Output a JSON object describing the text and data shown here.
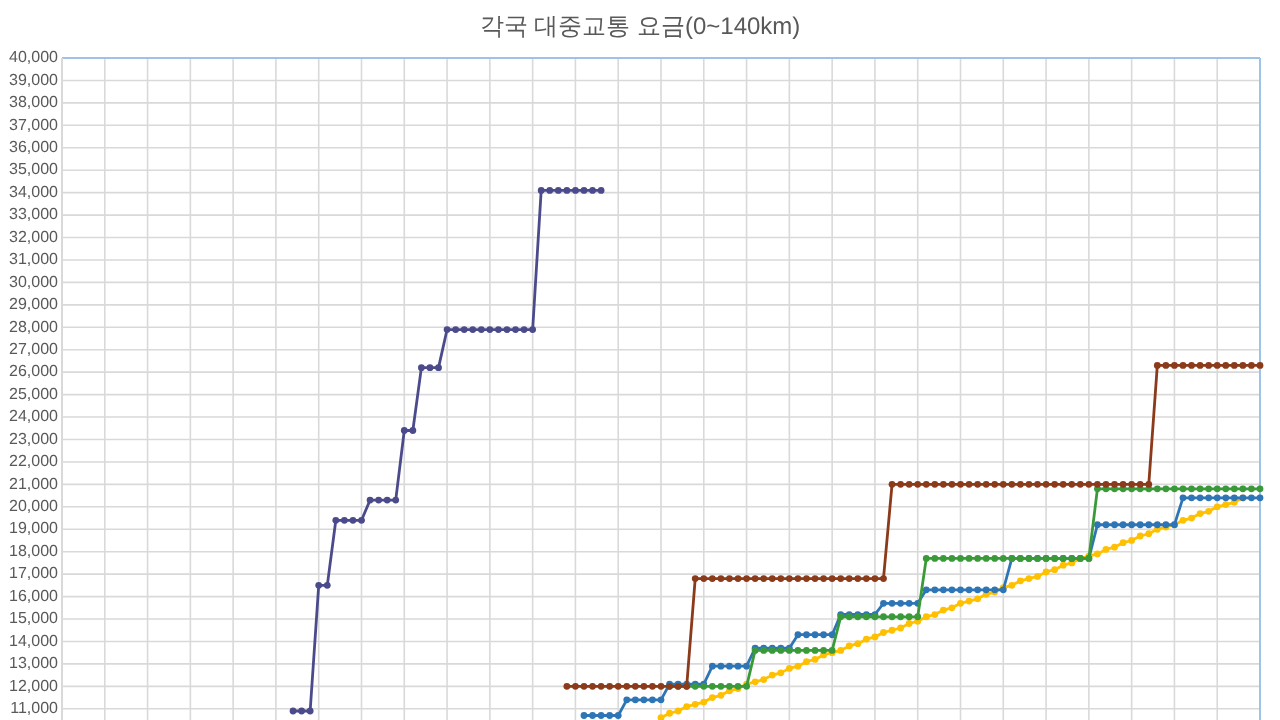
{
  "chart_data": {
    "type": "line",
    "title": "각국 대중교통 요금(0~140km)",
    "categories": [
      null,
      null,
      null,
      null,
      null,
      null,
      null,
      null,
      null,
      null,
      null,
      null,
      null,
      null,
      null,
      null,
      null,
      null,
      null,
      null,
      null,
      null,
      null,
      null,
      null,
      null,
      null,
      null,
      null,
      null,
      null,
      null,
      null,
      null,
      null,
      null,
      null,
      null,
      null,
      null,
      null,
      null,
      null,
      null,
      null,
      null,
      null,
      null,
      null,
      null,
      null,
      null,
      null,
      null,
      null,
      null,
      null,
      null,
      null,
      null,
      null,
      null,
      null,
      null,
      null,
      null,
      null,
      null,
      null,
      null,
      null,
      null,
      null,
      null,
      null,
      null,
      null,
      null,
      null,
      null,
      null,
      null,
      null,
      null,
      null,
      null,
      null,
      null,
      null,
      null,
      null,
      null,
      null,
      null,
      null,
      null,
      null,
      null,
      null,
      null,
      null,
      null,
      null,
      null,
      null,
      null,
      null,
      null,
      null,
      null,
      null,
      null,
      null,
      null,
      null,
      null,
      null,
      null,
      null,
      null,
      null,
      null,
      null,
      null,
      null,
      null,
      null,
      null,
      null,
      null,
      null,
      null,
      null,
      null,
      null,
      null,
      null,
      null,
      null,
      null,
      null
    ],
    "ylim": [
      10500,
      40000
    ],
    "yticks": [
      {
        "value": 11000,
        "label": "11,000"
      },
      {
        "value": 12000,
        "label": "12,000"
      },
      {
        "value": 13000,
        "label": "13,000"
      },
      {
        "value": 14000,
        "label": "14,000"
      },
      {
        "value": 15000,
        "label": "15,000"
      },
      {
        "value": 16000,
        "label": "16,000"
      },
      {
        "value": 17000,
        "label": "17,000"
      },
      {
        "value": 18000,
        "label": "18,000"
      },
      {
        "value": 19000,
        "label": "19,000"
      },
      {
        "value": 20000,
        "label": "20,000"
      },
      {
        "value": 21000,
        "label": "21,000"
      },
      {
        "value": 22000,
        "label": "22,000"
      },
      {
        "value": 23000,
        "label": "23,000"
      },
      {
        "value": 24000,
        "label": "24,000"
      },
      {
        "value": 25000,
        "label": "25,000"
      },
      {
        "value": 26000,
        "label": "26,000"
      },
      {
        "value": 27000,
        "label": "27,000"
      },
      {
        "value": 28000,
        "label": "28,000"
      },
      {
        "value": 29000,
        "label": "29,000"
      },
      {
        "value": 30000,
        "label": "30,000"
      },
      {
        "value": 31000,
        "label": "31,000"
      },
      {
        "value": 32000,
        "label": "32,000"
      },
      {
        "value": 33000,
        "label": "33,000"
      },
      {
        "value": 34000,
        "label": "34,000"
      },
      {
        "value": 35000,
        "label": "35,000"
      },
      {
        "value": 36000,
        "label": "36,000"
      },
      {
        "value": 37000,
        "label": "37,000"
      },
      {
        "value": 38000,
        "label": "38,000"
      },
      {
        "value": 39000,
        "label": "39,000"
      },
      {
        "value": 40000,
        "label": "40,000"
      }
    ],
    "grid": true,
    "marker": "circle",
    "line_style": "solid",
    "series": [
      {
        "color": "#ffc000",
        "values": [
          null,
          null,
          null,
          null,
          null,
          null,
          null,
          null,
          null,
          null,
          null,
          null,
          null,
          null,
          null,
          null,
          null,
          null,
          null,
          null,
          null,
          null,
          null,
          null,
          null,
          null,
          null,
          null,
          null,
          null,
          null,
          null,
          null,
          null,
          null,
          null,
          null,
          null,
          null,
          null,
          null,
          null,
          null,
          null,
          null,
          null,
          null,
          null,
          null,
          null,
          null,
          null,
          null,
          null,
          null,
          null,
          null,
          null,
          null,
          null,
          null,
          null,
          null,
          null,
          null,
          null,
          null,
          null,
          null,
          null,
          10600,
          10800,
          10900,
          11100,
          11200,
          11300,
          11500,
          11600,
          11800,
          11900,
          12100,
          12200,
          12300,
          12500,
          12600,
          12800,
          12900,
          13100,
          13200,
          13400,
          13500,
          13600,
          13800,
          13900,
          14100,
          14200,
          14400,
          14500,
          14600,
          14800,
          14900,
          15100,
          15200,
          15400,
          15500,
          15700,
          15800,
          15900,
          16100,
          16200,
          16400,
          16500,
          16700,
          16800,
          16900,
          17100,
          17200,
          17400,
          17500,
          17700,
          17800,
          17900,
          18100,
          18200,
          18400,
          18500,
          18700,
          18800,
          19000,
          19100,
          19200,
          19400,
          19500,
          19700,
          19800,
          20000,
          20100,
          20200,
          20400,
          null,
          null
        ]
      },
      {
        "color": "#2e75b6",
        "values": [
          null,
          null,
          null,
          null,
          null,
          null,
          null,
          null,
          null,
          null,
          null,
          null,
          null,
          null,
          null,
          null,
          null,
          null,
          null,
          null,
          null,
          null,
          null,
          null,
          null,
          null,
          null,
          null,
          null,
          null,
          null,
          null,
          null,
          null,
          null,
          null,
          null,
          null,
          null,
          null,
          null,
          null,
          null,
          null,
          null,
          null,
          null,
          null,
          null,
          null,
          null,
          null,
          null,
          null,
          null,
          null,
          null,
          null,
          null,
          null,
          null,
          10700,
          10700,
          10700,
          10700,
          10700,
          11400,
          11400,
          11400,
          11400,
          11400,
          12100,
          12100,
          12100,
          12100,
          12100,
          12900,
          12900,
          12900,
          12900,
          12900,
          13700,
          13700,
          13700,
          13700,
          13700,
          14300,
          14300,
          14300,
          14300,
          14300,
          15200,
          15200,
          15200,
          15200,
          15200,
          15700,
          15700,
          15700,
          15700,
          15700,
          16300,
          16300,
          16300,
          16300,
          16300,
          16300,
          16300,
          16300,
          16300,
          16300,
          17700,
          17700,
          17700,
          17700,
          17700,
          17700,
          17700,
          17700,
          17700,
          17700,
          19200,
          19200,
          19200,
          19200,
          19200,
          19200,
          19200,
          19200,
          19200,
          19200,
          20400,
          20400,
          20400,
          20400,
          20400,
          20400,
          20400,
          20400,
          20400,
          20400
        ]
      },
      {
        "color": "#3a9a3a",
        "values": [
          null,
          null,
          null,
          null,
          null,
          null,
          null,
          null,
          null,
          null,
          null,
          null,
          null,
          null,
          null,
          null,
          null,
          null,
          null,
          null,
          null,
          null,
          null,
          null,
          null,
          null,
          null,
          null,
          null,
          null,
          null,
          null,
          null,
          null,
          null,
          null,
          null,
          null,
          null,
          null,
          null,
          null,
          null,
          null,
          null,
          null,
          null,
          null,
          null,
          null,
          null,
          null,
          null,
          null,
          null,
          null,
          null,
          null,
          null,
          null,
          null,
          null,
          null,
          null,
          null,
          null,
          null,
          null,
          null,
          null,
          null,
          12000,
          12000,
          12000,
          12000,
          12000,
          12000,
          12000,
          12000,
          12000,
          12000,
          13600,
          13600,
          13600,
          13600,
          13600,
          13600,
          13600,
          13600,
          13600,
          13600,
          15100,
          15100,
          15100,
          15100,
          15100,
          15100,
          15100,
          15100,
          15100,
          15100,
          17700,
          17700,
          17700,
          17700,
          17700,
          17700,
          17700,
          17700,
          17700,
          17700,
          17700,
          17700,
          17700,
          17700,
          17700,
          17700,
          17700,
          17700,
          17700,
          17700,
          20800,
          20800,
          20800,
          20800,
          20800,
          20800,
          20800,
          20800,
          20800,
          20800,
          20800,
          20800,
          20800,
          20800,
          20800,
          20800,
          20800,
          20800,
          20800,
          20800
        ]
      },
      {
        "color": "#8b3a1a",
        "values": [
          null,
          null,
          null,
          null,
          null,
          null,
          null,
          null,
          null,
          null,
          null,
          null,
          null,
          null,
          null,
          null,
          null,
          null,
          null,
          null,
          null,
          null,
          null,
          null,
          null,
          null,
          null,
          null,
          null,
          null,
          null,
          null,
          null,
          null,
          null,
          null,
          null,
          null,
          null,
          null,
          null,
          null,
          null,
          null,
          null,
          null,
          null,
          null,
          null,
          null,
          null,
          null,
          null,
          null,
          null,
          null,
          null,
          null,
          null,
          12000,
          12000,
          12000,
          12000,
          12000,
          12000,
          12000,
          12000,
          12000,
          12000,
          12000,
          12000,
          12000,
          12000,
          12000,
          16800,
          16800,
          16800,
          16800,
          16800,
          16800,
          16800,
          16800,
          16800,
          16800,
          16800,
          16800,
          16800,
          16800,
          16800,
          16800,
          16800,
          16800,
          16800,
          16800,
          16800,
          16800,
          16800,
          21000,
          21000,
          21000,
          21000,
          21000,
          21000,
          21000,
          21000,
          21000,
          21000,
          21000,
          21000,
          21000,
          21000,
          21000,
          21000,
          21000,
          21000,
          21000,
          21000,
          21000,
          21000,
          21000,
          21000,
          21000,
          21000,
          21000,
          21000,
          21000,
          21000,
          21000,
          26300,
          26300,
          26300,
          26300,
          26300,
          26300,
          26300,
          26300,
          26300,
          26300,
          26300,
          26300,
          26300
        ]
      },
      {
        "color": "#4b4b8c",
        "values": [
          null,
          null,
          null,
          null,
          null,
          null,
          null,
          null,
          null,
          null,
          null,
          null,
          null,
          null,
          null,
          null,
          null,
          null,
          null,
          null,
          null,
          null,
          null,
          null,
          null,
          null,
          null,
          10900,
          10900,
          10900,
          16500,
          16500,
          19400,
          19400,
          19400,
          19400,
          20300,
          20300,
          20300,
          20300,
          23400,
          23400,
          26200,
          26200,
          26200,
          27900,
          27900,
          27900,
          27900,
          27900,
          27900,
          27900,
          27900,
          27900,
          27900,
          27900,
          34100,
          34100,
          34100,
          34100,
          34100,
          34100,
          34100,
          34100,
          null,
          null,
          null,
          null,
          null,
          null,
          null,
          null,
          null,
          null,
          null,
          null,
          null,
          null,
          null,
          null,
          null,
          null,
          null,
          null,
          null,
          null,
          null,
          null,
          null,
          null,
          null,
          null,
          null,
          null,
          null,
          null,
          null,
          null,
          null,
          null,
          null,
          null,
          null,
          null,
          null,
          null,
          null,
          null,
          null,
          null,
          null,
          null,
          null,
          null,
          null,
          null,
          null,
          null,
          null,
          null,
          null,
          null,
          null,
          null,
          null,
          null,
          null,
          null,
          null,
          null,
          null,
          null,
          null,
          null,
          null,
          null,
          null,
          null,
          null,
          null,
          null
        ]
      }
    ]
  }
}
